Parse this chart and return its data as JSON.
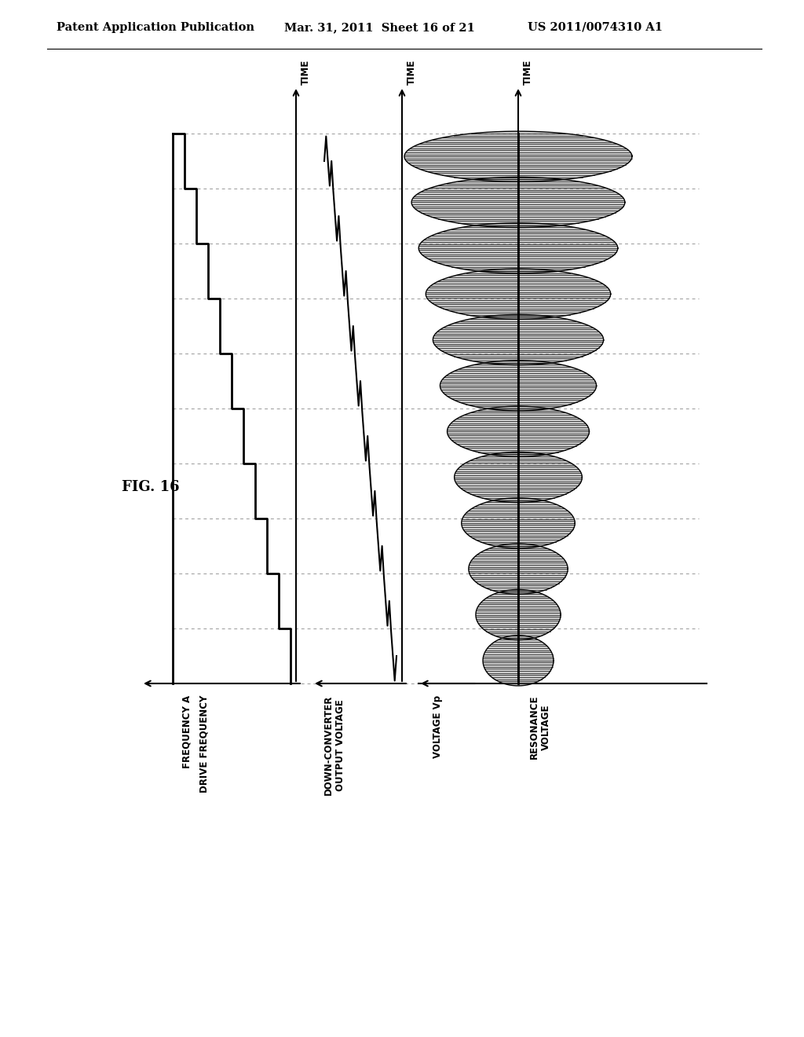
{
  "title_left": "Patent Application Publication",
  "title_mid": "Mar. 31, 2011  Sheet 16 of 21",
  "title_right": "US 2011/0074310 A1",
  "fig_label": "FIG. 16",
  "bg_color": "#ffffff",
  "n_steps": 10,
  "n_lobes": 12,
  "time_label": "TIME",
  "label1a": "FREQUENCY A",
  "label1b": "DRIVE FREQUENCY",
  "label2": "DOWN-CONVERTER\nOUTPUT VOLTAGE",
  "label3": "VOLTAGE Vp",
  "label4": "RESONANCE\nVOLTAGE"
}
